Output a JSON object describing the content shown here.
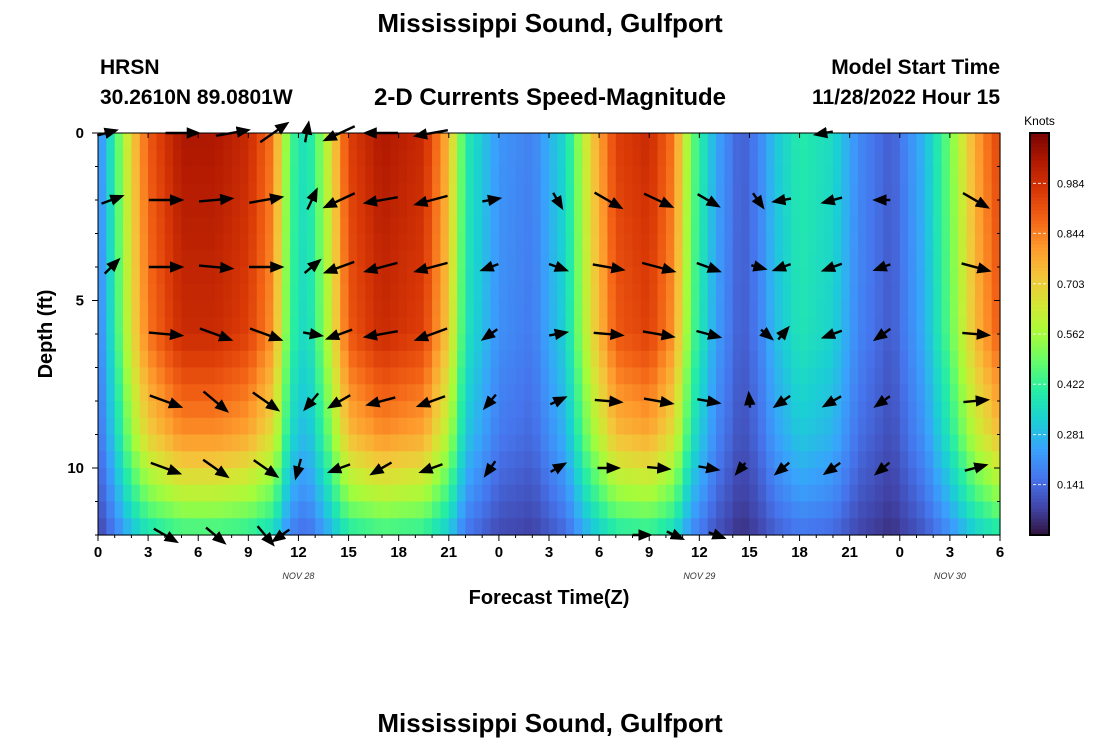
{
  "header": {
    "main_title": "Mississippi Sound, Gulfport",
    "station_id": "HRSN",
    "coordinates": "30.2610N  89.0801W",
    "chart_title": "2-D Currents Speed-Magnitude",
    "model_start_label": "Model Start Time",
    "model_start_value": "11/28/2022 Hour 15",
    "bottom_title": "Mississippi Sound, Gulfport"
  },
  "chart_data": {
    "type": "heatmap",
    "title": "2-D Currents Speed-Magnitude",
    "xlabel": "Forecast Time(Z)",
    "ylabel": "Depth (ft)",
    "x_tick_labels": [
      "0",
      "3",
      "6",
      "9",
      "12",
      "15",
      "18",
      "21",
      "0",
      "3",
      "6",
      "9",
      "12",
      "15",
      "18",
      "21",
      "0",
      "3",
      "6"
    ],
    "x_range_hours": [
      0,
      54
    ],
    "date_labels": [
      {
        "text": "NOV 28",
        "hour": 12
      },
      {
        "text": "NOV 29",
        "hour": 36
      },
      {
        "text": "NOV 30",
        "hour": 51
      }
    ],
    "y_ticks": [
      0,
      5,
      10
    ],
    "ylim": [
      0,
      12
    ],
    "colorbar": {
      "label": "Knots",
      "range": [
        0,
        1.125
      ],
      "ticks": [
        "0.141",
        "0.281",
        "0.422",
        "0.562",
        "0.703",
        "0.844",
        "0.984"
      ],
      "colors": [
        "#30123b",
        "#4145ab",
        "#4675ed",
        "#39a2fc",
        "#1bcfd4",
        "#24eca6",
        "#61fc6c",
        "#a4fc3b",
        "#d1e834",
        "#f3c63a",
        "#fe9b2d",
        "#f36315",
        "#d93806",
        "#b11901",
        "#7a0402"
      ]
    },
    "speed_profile_knots": [
      {
        "hour": 0,
        "speed": 0.18
      },
      {
        "hour": 1,
        "speed": 0.42
      },
      {
        "hour": 2,
        "speed": 0.7
      },
      {
        "hour": 3,
        "speed": 0.9
      },
      {
        "hour": 5,
        "speed": 1.05
      },
      {
        "hour": 7,
        "speed": 1.05
      },
      {
        "hour": 9,
        "speed": 1.0
      },
      {
        "hour": 10.5,
        "speed": 0.85
      },
      {
        "hour": 11.5,
        "speed": 0.45
      },
      {
        "hour": 12.5,
        "speed": 0.35
      },
      {
        "hour": 13.5,
        "speed": 0.55
      },
      {
        "hour": 15,
        "speed": 0.95
      },
      {
        "hour": 17,
        "speed": 1.05
      },
      {
        "hour": 19.5,
        "speed": 1.0
      },
      {
        "hour": 21,
        "speed": 0.75
      },
      {
        "hour": 22,
        "speed": 0.4
      },
      {
        "hour": 24,
        "speed": 0.22
      },
      {
        "hour": 26,
        "speed": 0.18
      },
      {
        "hour": 28,
        "speed": 0.35
      },
      {
        "hour": 29.5,
        "speed": 0.7
      },
      {
        "hour": 31,
        "speed": 0.95
      },
      {
        "hour": 33,
        "speed": 1.0
      },
      {
        "hour": 34.5,
        "speed": 0.85
      },
      {
        "hour": 35.5,
        "speed": 0.5
      },
      {
        "hour": 37,
        "speed": 0.25
      },
      {
        "hour": 38.5,
        "speed": 0.12
      },
      {
        "hour": 39.5,
        "speed": 0.18
      },
      {
        "hour": 40.5,
        "speed": 0.3
      },
      {
        "hour": 42,
        "speed": 0.4
      },
      {
        "hour": 44,
        "speed": 0.35
      },
      {
        "hour": 45.5,
        "speed": 0.2
      },
      {
        "hour": 47.5,
        "speed": 0.12
      },
      {
        "hour": 49.5,
        "speed": 0.28
      },
      {
        "hour": 51,
        "speed": 0.5
      },
      {
        "hour": 52.5,
        "speed": 0.78
      },
      {
        "hour": 54,
        "speed": 0.95
      }
    ],
    "depth_attenuation": [
      {
        "depth": 0,
        "factor": 1.0
      },
      {
        "depth": 6,
        "factor": 0.95
      },
      {
        "depth": 9,
        "factor": 0.78
      },
      {
        "depth": 11,
        "factor": 0.55
      },
      {
        "depth": 12,
        "factor": 0.4
      }
    ],
    "vector_depths_ft": [
      0,
      2,
      4,
      6,
      8,
      10,
      12
    ],
    "vectors": [
      {
        "hour": 0.5,
        "depth": 0,
        "angle_deg": 15,
        "speed": 0.4
      },
      {
        "hour": 5,
        "depth": 0,
        "angle_deg": 0,
        "speed": 1.0
      },
      {
        "hour": 8,
        "depth": 0,
        "angle_deg": 10,
        "speed": 1.0
      },
      {
        "hour": 10.5,
        "depth": 0,
        "angle_deg": 35,
        "speed": 1.0
      },
      {
        "hour": 12.5,
        "depth": 0,
        "angle_deg": 80,
        "speed": 0.4
      },
      {
        "hour": 14.5,
        "depth": 0,
        "angle_deg": 205,
        "speed": 1.0
      },
      {
        "hour": 17,
        "depth": 0,
        "angle_deg": 180,
        "speed": 1.0
      },
      {
        "hour": 20,
        "depth": 0,
        "angle_deg": 190,
        "speed": 1.0
      },
      {
        "hour": 43.5,
        "depth": 0,
        "angle_deg": 190,
        "speed": 0.3
      },
      {
        "hour": 0.8,
        "depth": 2,
        "angle_deg": 20,
        "speed": 0.5
      },
      {
        "hour": 4,
        "depth": 2,
        "angle_deg": 0,
        "speed": 1.0
      },
      {
        "hour": 7,
        "depth": 2,
        "angle_deg": 5,
        "speed": 1.0
      },
      {
        "hour": 10,
        "depth": 2,
        "angle_deg": 10,
        "speed": 1.0
      },
      {
        "hour": 12.8,
        "depth": 2,
        "angle_deg": 65,
        "speed": 0.5
      },
      {
        "hour": 14.5,
        "depth": 2,
        "angle_deg": 205,
        "speed": 1.0
      },
      {
        "hour": 17,
        "depth": 2,
        "angle_deg": 190,
        "speed": 1.0
      },
      {
        "hour": 20,
        "depth": 2,
        "angle_deg": 195,
        "speed": 1.0
      },
      {
        "hour": 23.5,
        "depth": 2,
        "angle_deg": 10,
        "speed": 0.3
      },
      {
        "hour": 27.5,
        "depth": 2,
        "angle_deg": -60,
        "speed": 0.3
      },
      {
        "hour": 30.5,
        "depth": 2,
        "angle_deg": -30,
        "speed": 0.9
      },
      {
        "hour": 33.5,
        "depth": 2,
        "angle_deg": -25,
        "speed": 0.9
      },
      {
        "hour": 36.5,
        "depth": 2,
        "angle_deg": -30,
        "speed": 0.6
      },
      {
        "hour": 39.5,
        "depth": 2,
        "angle_deg": -55,
        "speed": 0.3
      },
      {
        "hour": 41,
        "depth": 2,
        "angle_deg": 190,
        "speed": 0.3
      },
      {
        "hour": 44,
        "depth": 2,
        "angle_deg": 195,
        "speed": 0.4
      },
      {
        "hour": 47,
        "depth": 2,
        "angle_deg": 180,
        "speed": 0.2
      },
      {
        "hour": 52.5,
        "depth": 2,
        "angle_deg": -30,
        "speed": 0.8
      },
      {
        "hour": 0.8,
        "depth": 4,
        "angle_deg": 45,
        "speed": 0.4
      },
      {
        "hour": 4,
        "depth": 4,
        "angle_deg": 0,
        "speed": 1.0
      },
      {
        "hour": 7,
        "depth": 4,
        "angle_deg": -5,
        "speed": 1.0
      },
      {
        "hour": 10,
        "depth": 4,
        "angle_deg": 0,
        "speed": 1.0
      },
      {
        "hour": 12.8,
        "depth": 4,
        "angle_deg": 40,
        "speed": 0.4
      },
      {
        "hour": 14.5,
        "depth": 4,
        "angle_deg": 200,
        "speed": 0.9
      },
      {
        "hour": 17,
        "depth": 4,
        "angle_deg": 195,
        "speed": 1.0
      },
      {
        "hour": 20,
        "depth": 4,
        "angle_deg": 195,
        "speed": 1.0
      },
      {
        "hour": 23.5,
        "depth": 4,
        "angle_deg": 200,
        "speed": 0.3
      },
      {
        "hour": 27.5,
        "depth": 4,
        "angle_deg": -20,
        "speed": 0.35
      },
      {
        "hour": 30.5,
        "depth": 4,
        "angle_deg": -10,
        "speed": 0.9
      },
      {
        "hour": 33.5,
        "depth": 4,
        "angle_deg": -15,
        "speed": 1.0
      },
      {
        "hour": 36.5,
        "depth": 4,
        "angle_deg": -20,
        "speed": 0.6
      },
      {
        "hour": 39.5,
        "depth": 4,
        "angle_deg": -15,
        "speed": 0.15
      },
      {
        "hour": 41,
        "depth": 4,
        "angle_deg": 200,
        "speed": 0.3
      },
      {
        "hour": 44,
        "depth": 4,
        "angle_deg": 200,
        "speed": 0.4
      },
      {
        "hour": 47,
        "depth": 4,
        "angle_deg": 200,
        "speed": 0.25
      },
      {
        "hour": 52.5,
        "depth": 4,
        "angle_deg": -15,
        "speed": 0.8
      },
      {
        "hour": 4,
        "depth": 6,
        "angle_deg": -5,
        "speed": 1.0
      },
      {
        "hour": 7,
        "depth": 6,
        "angle_deg": -20,
        "speed": 1.0
      },
      {
        "hour": 10,
        "depth": 6,
        "angle_deg": -20,
        "speed": 1.0
      },
      {
        "hour": 12.8,
        "depth": 6,
        "angle_deg": -10,
        "speed": 0.35
      },
      {
        "hour": 14.5,
        "depth": 6,
        "angle_deg": 200,
        "speed": 0.7
      },
      {
        "hour": 17,
        "depth": 6,
        "angle_deg": 190,
        "speed": 1.0
      },
      {
        "hour": 20,
        "depth": 6,
        "angle_deg": 200,
        "speed": 1.0
      },
      {
        "hour": 23.5,
        "depth": 6,
        "angle_deg": 215,
        "speed": 0.3
      },
      {
        "hour": 27.5,
        "depth": 6,
        "angle_deg": 10,
        "speed": 0.3
      },
      {
        "hour": 30.5,
        "depth": 6,
        "angle_deg": -5,
        "speed": 0.8
      },
      {
        "hour": 33.5,
        "depth": 6,
        "angle_deg": -10,
        "speed": 0.9
      },
      {
        "hour": 36.5,
        "depth": 6,
        "angle_deg": -15,
        "speed": 0.6
      },
      {
        "hour": 40,
        "depth": 6,
        "angle_deg": -40,
        "speed": 0.15
      },
      {
        "hour": 41,
        "depth": 6,
        "angle_deg": 50,
        "speed": 0.2
      },
      {
        "hour": 44,
        "depth": 6,
        "angle_deg": 200,
        "speed": 0.4
      },
      {
        "hour": 47,
        "depth": 6,
        "angle_deg": 215,
        "speed": 0.35
      },
      {
        "hour": 52.5,
        "depth": 6,
        "angle_deg": -5,
        "speed": 0.7
      },
      {
        "hour": 4,
        "depth": 8,
        "angle_deg": -20,
        "speed": 1.0
      },
      {
        "hour": 7,
        "depth": 8,
        "angle_deg": -40,
        "speed": 0.9
      },
      {
        "hour": 10,
        "depth": 8,
        "angle_deg": -35,
        "speed": 0.9
      },
      {
        "hour": 12.8,
        "depth": 8,
        "angle_deg": 230,
        "speed": 0.45
      },
      {
        "hour": 14.5,
        "depth": 8,
        "angle_deg": 210,
        "speed": 0.6
      },
      {
        "hour": 17,
        "depth": 8,
        "angle_deg": 195,
        "speed": 0.8
      },
      {
        "hour": 20,
        "depth": 8,
        "angle_deg": 200,
        "speed": 0.8
      },
      {
        "hour": 23.5,
        "depth": 8,
        "angle_deg": 230,
        "speed": 0.3
      },
      {
        "hour": 27.5,
        "depth": 8,
        "angle_deg": 25,
        "speed": 0.25
      },
      {
        "hour": 30.5,
        "depth": 8,
        "angle_deg": -5,
        "speed": 0.7
      },
      {
        "hour": 33.5,
        "depth": 8,
        "angle_deg": -10,
        "speed": 0.8
      },
      {
        "hour": 36.5,
        "depth": 8,
        "angle_deg": -10,
        "speed": 0.5
      },
      {
        "hour": 39,
        "depth": 8,
        "angle_deg": 95,
        "speed": 0.15
      },
      {
        "hour": 41,
        "depth": 8,
        "angle_deg": 215,
        "speed": 0.35
      },
      {
        "hour": 44,
        "depth": 8,
        "angle_deg": 210,
        "speed": 0.4
      },
      {
        "hour": 47,
        "depth": 8,
        "angle_deg": 215,
        "speed": 0.3
      },
      {
        "hour": 52.5,
        "depth": 8,
        "angle_deg": 5,
        "speed": 0.6
      },
      {
        "hour": 4,
        "depth": 10,
        "angle_deg": -20,
        "speed": 0.9
      },
      {
        "hour": 7,
        "depth": 10,
        "angle_deg": -35,
        "speed": 0.85
      },
      {
        "hour": 10,
        "depth": 10,
        "angle_deg": -35,
        "speed": 0.8
      },
      {
        "hour": 12,
        "depth": 10,
        "angle_deg": 255,
        "speed": 0.4
      },
      {
        "hour": 14.5,
        "depth": 10,
        "angle_deg": 200,
        "speed": 0.5
      },
      {
        "hour": 17,
        "depth": 10,
        "angle_deg": 210,
        "speed": 0.55
      },
      {
        "hour": 20,
        "depth": 10,
        "angle_deg": 200,
        "speed": 0.55
      },
      {
        "hour": 23.5,
        "depth": 10,
        "angle_deg": 235,
        "speed": 0.3
      },
      {
        "hour": 27.5,
        "depth": 10,
        "angle_deg": 30,
        "speed": 0.25
      },
      {
        "hour": 30.5,
        "depth": 10,
        "angle_deg": 0,
        "speed": 0.45
      },
      {
        "hour": 33.5,
        "depth": 10,
        "angle_deg": -5,
        "speed": 0.5
      },
      {
        "hour": 36.5,
        "depth": 10,
        "angle_deg": -10,
        "speed": 0.4
      },
      {
        "hour": 38.5,
        "depth": 10,
        "angle_deg": 230,
        "speed": 0.15
      },
      {
        "hour": 41,
        "depth": 10,
        "angle_deg": 220,
        "speed": 0.3
      },
      {
        "hour": 44,
        "depth": 10,
        "angle_deg": 215,
        "speed": 0.35
      },
      {
        "hour": 47,
        "depth": 10,
        "angle_deg": 220,
        "speed": 0.3
      },
      {
        "hour": 52.5,
        "depth": 10,
        "angle_deg": 15,
        "speed": 0.5
      },
      {
        "hour": 4,
        "depth": 12,
        "angle_deg": -30,
        "speed": 0.7
      },
      {
        "hour": 7,
        "depth": 12,
        "angle_deg": -40,
        "speed": 0.6
      },
      {
        "hour": 10,
        "depth": 12,
        "angle_deg": -50,
        "speed": 0.6
      },
      {
        "hour": 11,
        "depth": 12,
        "angle_deg": 215,
        "speed": 0.4
      },
      {
        "hour": 32.5,
        "depth": 12,
        "angle_deg": 0,
        "speed": 0.3
      },
      {
        "hour": 34.5,
        "depth": 12,
        "angle_deg": -25,
        "speed": 0.3
      },
      {
        "hour": 37,
        "depth": 12,
        "angle_deg": -20,
        "speed": 0.25
      }
    ]
  }
}
